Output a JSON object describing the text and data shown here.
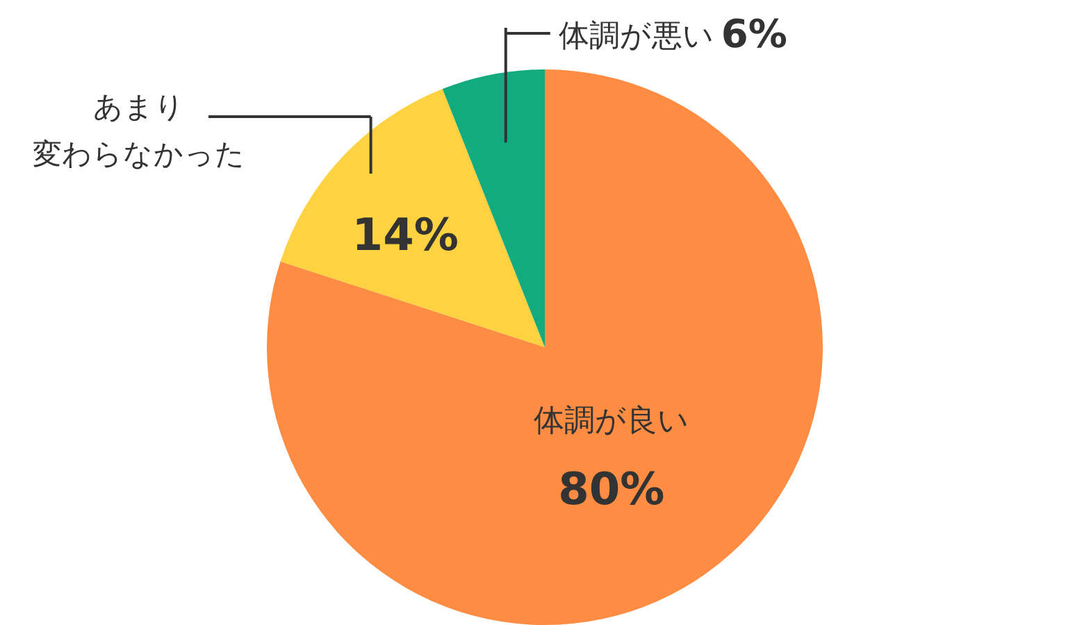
{
  "chart_data": {
    "type": "pie",
    "categories": [
      "体調が良い",
      "あまり変わらなかった",
      "体調が悪い"
    ],
    "values": [
      80,
      14,
      6
    ],
    "colors": [
      "#fe8c42",
      "#fed240",
      "#12ab80"
    ],
    "value_labels": [
      "80%",
      "14%",
      "6%"
    ]
  }
}
